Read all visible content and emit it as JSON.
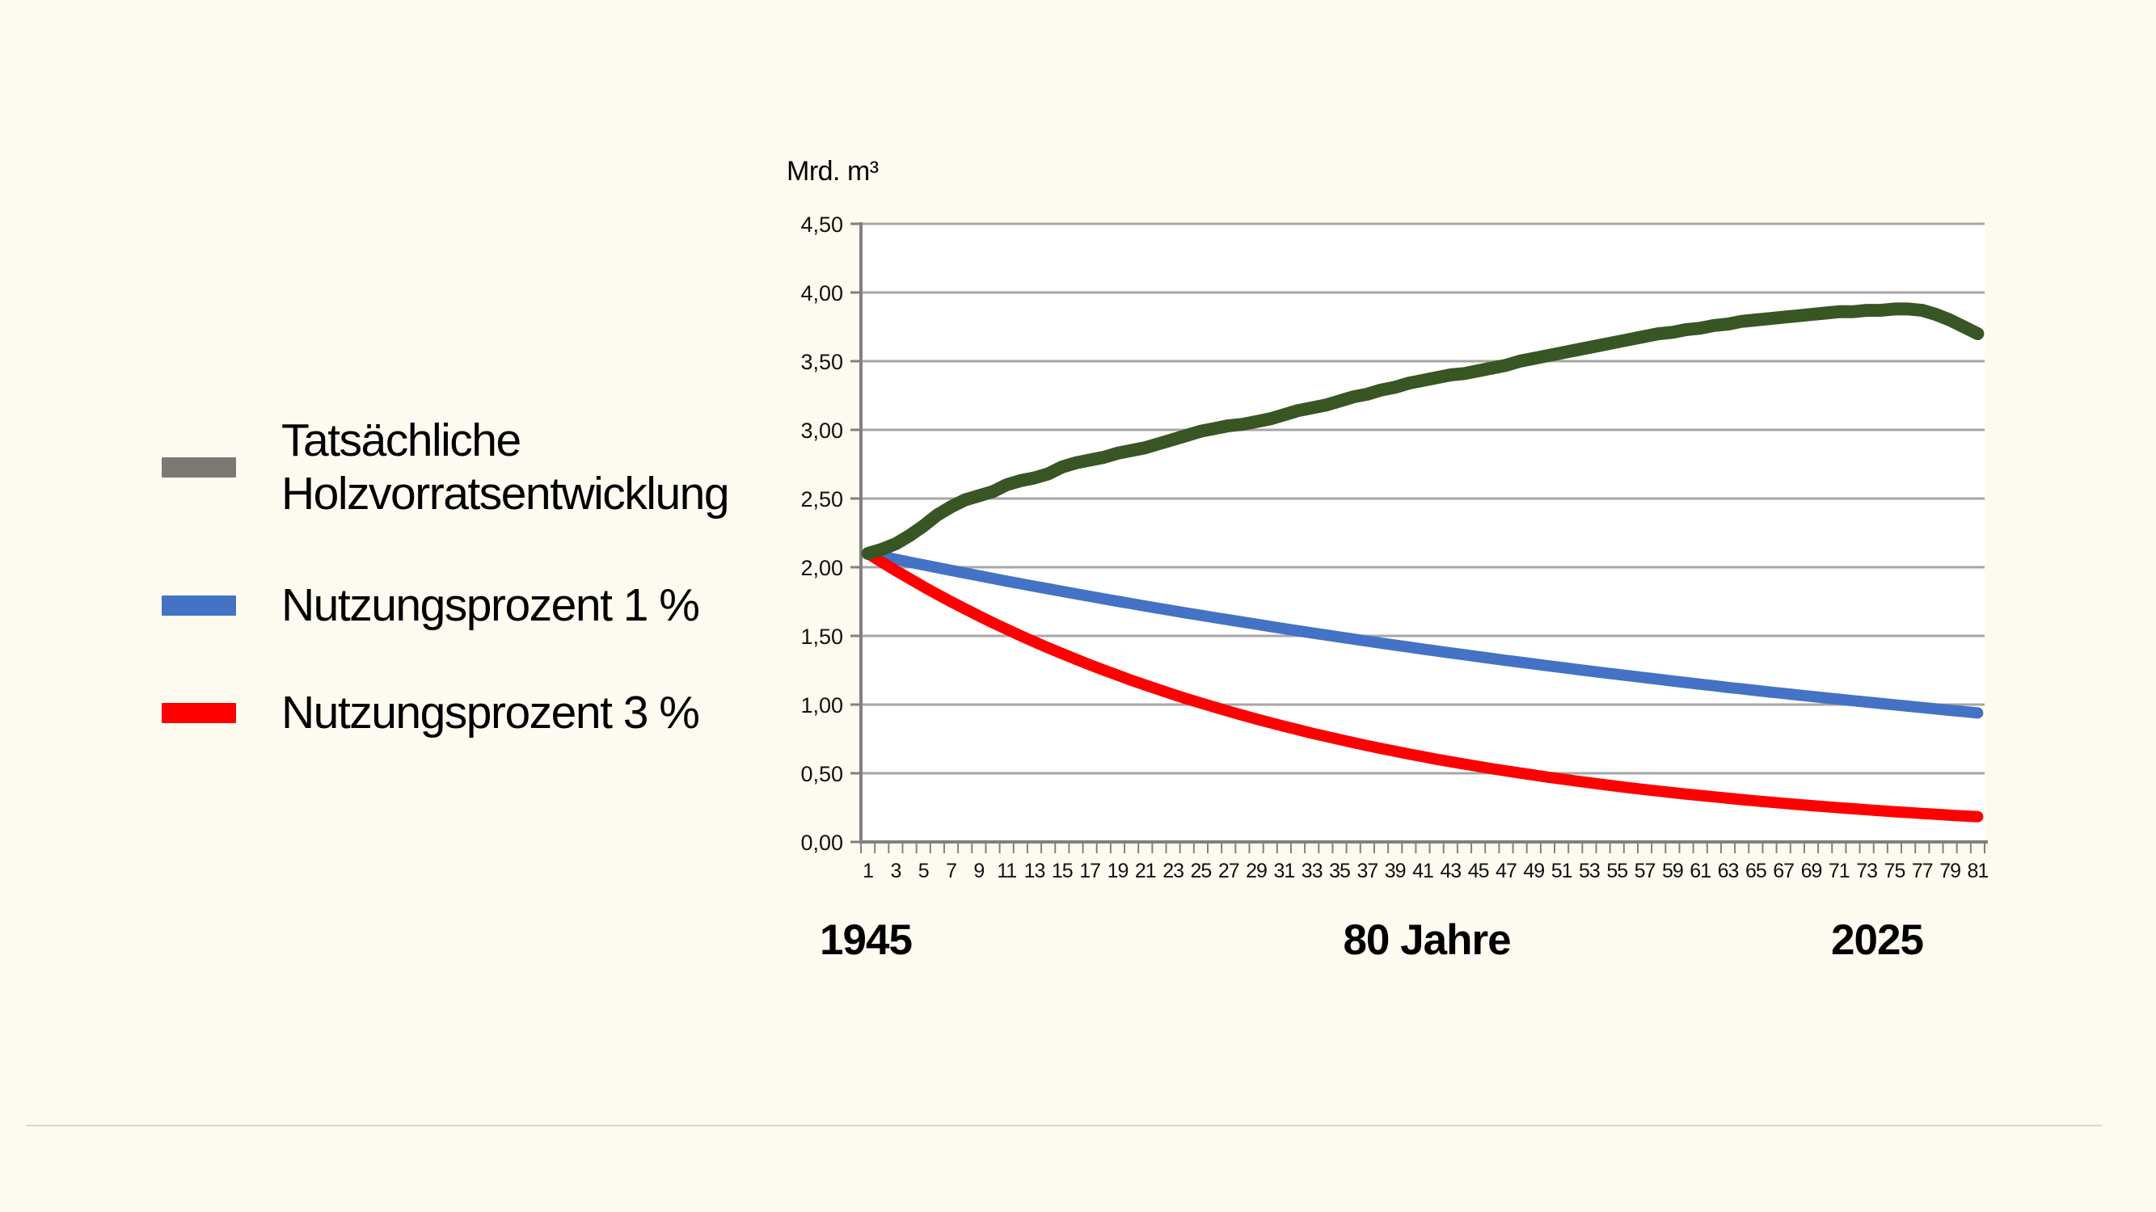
{
  "slide": {
    "background_color": "#FDFBF0",
    "plot_background_color": "#FFFFFF",
    "gridline_color": "#A6A6A6",
    "axis_color": "#808080",
    "divider_color": "#DAD7CB"
  },
  "legend": {
    "items": [
      {
        "label": "Tatsächliche Holzvorratsentwicklung",
        "color": "#7C7873"
      },
      {
        "label": "Nutzungsprozent 1 %",
        "color": "#4472C4"
      },
      {
        "label": "Nutzungsprozent 3 %",
        "color": "#FF0000"
      }
    ]
  },
  "chart_data": {
    "type": "line",
    "y_axis_title": "Mrd. m³",
    "ylim": [
      0,
      4.5
    ],
    "y_tick_step": 0.5,
    "y_tick_labels": [
      "4,50",
      "4,00",
      "3,50",
      "3,00",
      "2,50",
      "2,00",
      "1,50",
      "1,00",
      "0,50",
      "0,00"
    ],
    "grid": true,
    "legend_position": "left",
    "x": [
      1,
      2,
      3,
      4,
      5,
      6,
      7,
      8,
      9,
      10,
      11,
      12,
      13,
      14,
      15,
      16,
      17,
      18,
      19,
      20,
      21,
      22,
      23,
      24,
      25,
      26,
      27,
      28,
      29,
      30,
      31,
      32,
      33,
      34,
      35,
      36,
      37,
      38,
      39,
      40,
      41,
      42,
      43,
      44,
      45,
      46,
      47,
      48,
      49,
      50,
      51,
      52,
      53,
      54,
      55,
      56,
      57,
      58,
      59,
      60,
      61,
      62,
      63,
      64,
      65,
      66,
      67,
      68,
      69,
      70,
      71,
      72,
      73,
      74,
      75,
      76,
      77,
      78,
      79,
      80,
      81
    ],
    "x_tick_labels": [
      "1",
      "3",
      "5",
      "7",
      "9",
      "11",
      "13",
      "15",
      "17",
      "19",
      "21",
      "23",
      "25",
      "27",
      "29",
      "31",
      "33",
      "35",
      "37",
      "39",
      "41",
      "43",
      "45",
      "47",
      "49",
      "51",
      "53",
      "55",
      "57",
      "59",
      "61",
      "63",
      "65",
      "67",
      "69",
      "71",
      "73",
      "75",
      "77",
      "79",
      "81"
    ],
    "footer_labels": {
      "left": "1945",
      "center": "80 Jahre",
      "right": "2025"
    },
    "series": [
      {
        "name": "Tatsächliche Holzvorratsentwicklung",
        "color": "#385623",
        "stroke_width": 16,
        "values": [
          2.1,
          2.13,
          2.17,
          2.23,
          2.3,
          2.38,
          2.44,
          2.49,
          2.52,
          2.55,
          2.6,
          2.63,
          2.65,
          2.68,
          2.73,
          2.76,
          2.78,
          2.8,
          2.83,
          2.85,
          2.87,
          2.9,
          2.93,
          2.96,
          2.99,
          3.01,
          3.03,
          3.04,
          3.06,
          3.08,
          3.11,
          3.14,
          3.16,
          3.18,
          3.21,
          3.24,
          3.26,
          3.29,
          3.31,
          3.34,
          3.36,
          3.38,
          3.4,
          3.41,
          3.43,
          3.45,
          3.47,
          3.5,
          3.52,
          3.54,
          3.56,
          3.58,
          3.6,
          3.62,
          3.64,
          3.66,
          3.68,
          3.7,
          3.71,
          3.73,
          3.74,
          3.76,
          3.77,
          3.79,
          3.8,
          3.81,
          3.82,
          3.83,
          3.84,
          3.85,
          3.86,
          3.86,
          3.87,
          3.87,
          3.88,
          3.88,
          3.87,
          3.84,
          3.8,
          3.75,
          3.7
        ]
      },
      {
        "name": "Nutzungsprozent 1 %",
        "color": "#4472C4",
        "stroke_width": 14,
        "values": [
          2.1,
          2.079,
          2.058,
          2.037,
          2.017,
          1.997,
          1.977,
          1.957,
          1.938,
          1.918,
          1.899,
          1.88,
          1.861,
          1.843,
          1.824,
          1.806,
          1.788,
          1.77,
          1.752,
          1.735,
          1.717,
          1.7,
          1.683,
          1.666,
          1.65,
          1.633,
          1.617,
          1.601,
          1.585,
          1.569,
          1.553,
          1.537,
          1.522,
          1.507,
          1.492,
          1.477,
          1.462,
          1.447,
          1.433,
          1.419,
          1.404,
          1.39,
          1.376,
          1.363,
          1.349,
          1.335,
          1.322,
          1.309,
          1.296,
          1.283,
          1.27,
          1.257,
          1.245,
          1.232,
          1.22,
          1.208,
          1.196,
          1.184,
          1.172,
          1.16,
          1.148,
          1.137,
          1.125,
          1.114,
          1.103,
          1.092,
          1.081,
          1.07,
          1.06,
          1.049,
          1.039,
          1.028,
          1.018,
          1.008,
          0.998,
          0.988,
          0.978,
          0.968,
          0.958,
          0.949,
          0.939
        ]
      },
      {
        "name": "Nutzungsprozent 3 %",
        "color": "#FF0000",
        "stroke_width": 14,
        "values": [
          2.1,
          2.037,
          1.976,
          1.917,
          1.859,
          1.803,
          1.749,
          1.697,
          1.646,
          1.596,
          1.549,
          1.502,
          1.457,
          1.413,
          1.371,
          1.33,
          1.29,
          1.251,
          1.214,
          1.177,
          1.142,
          1.108,
          1.074,
          1.042,
          1.011,
          0.981,
          0.951,
          0.923,
          0.895,
          0.868,
          0.842,
          0.817,
          0.792,
          0.769,
          0.746,
          0.723,
          0.701,
          0.68,
          0.66,
          0.64,
          0.621,
          0.602,
          0.584,
          0.567,
          0.55,
          0.533,
          0.517,
          0.502,
          0.487,
          0.472,
          0.458,
          0.444,
          0.431,
          0.418,
          0.405,
          0.393,
          0.381,
          0.37,
          0.359,
          0.348,
          0.338,
          0.328,
          0.318,
          0.308,
          0.299,
          0.29,
          0.281,
          0.273,
          0.265,
          0.257,
          0.249,
          0.242,
          0.234,
          0.227,
          0.22,
          0.214,
          0.207,
          0.201,
          0.195,
          0.189,
          0.184
        ]
      }
    ]
  }
}
